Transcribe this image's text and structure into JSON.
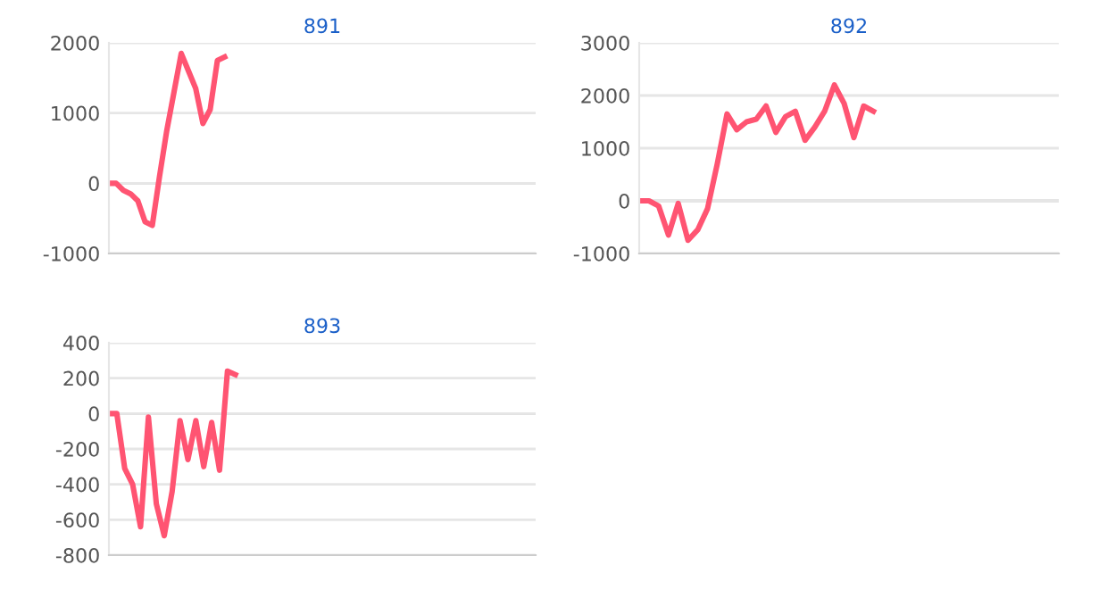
{
  "chart_data": [
    {
      "type": "line",
      "title": "891",
      "categories": [
        null,
        null,
        null,
        null,
        null,
        null,
        null,
        null,
        null,
        null,
        null,
        null,
        null,
        null,
        null,
        null,
        null,
        null,
        null,
        null,
        null,
        null,
        null,
        null,
        null,
        null,
        null,
        null,
        null,
        null,
        null,
        null,
        null,
        null,
        null,
        null,
        null,
        null,
        null,
        null,
        null,
        null,
        null,
        null,
        null,
        null,
        null,
        null,
        null,
        null,
        null,
        null,
        null,
        null,
        null,
        null,
        null,
        null,
        null,
        null
      ],
      "series": [
        {
          "color": "#ff5472",
          "values": [
            0,
            0,
            -100,
            -150,
            -250,
            -550,
            -600,
            100,
            750,
            1300,
            1850,
            1600,
            1350,
            850,
            1050,
            1750,
            1800,
            null,
            null,
            null,
            null,
            null,
            null,
            null,
            null,
            null,
            null,
            null,
            null,
            null,
            null,
            null,
            null,
            null,
            null,
            null,
            null,
            null,
            null,
            null,
            null,
            null,
            null,
            null,
            null,
            null,
            null,
            null,
            null,
            null,
            null,
            null,
            null,
            null,
            null,
            null,
            null,
            null,
            null,
            null
          ]
        }
      ],
      "ylim": [
        -1000,
        2000
      ],
      "yticks": [
        -1000,
        0,
        1000,
        2000
      ],
      "grid": "y",
      "tick_labels": "y"
    },
    {
      "type": "line",
      "title": "892",
      "categories": [
        null,
        null,
        null,
        null,
        null,
        null,
        null,
        null,
        null,
        null,
        null,
        null,
        null,
        null,
        null,
        null,
        null,
        null,
        null,
        null,
        null,
        null,
        null,
        null,
        null,
        null,
        null,
        null,
        null,
        null,
        null,
        null,
        null,
        null,
        null,
        null,
        null,
        null,
        null,
        null,
        null,
        null,
        null,
        null
      ],
      "series": [
        {
          "color": "#ff5472",
          "values": [
            0,
            0,
            -100,
            -650,
            -50,
            -750,
            -550,
            -150,
            700,
            1650,
            1350,
            1500,
            1550,
            1800,
            1300,
            1600,
            1700,
            1150,
            1400,
            1700,
            2200,
            1850,
            1200,
            1800,
            1700,
            null,
            null,
            null,
            null,
            null,
            null,
            null,
            null,
            null,
            null,
            null,
            null,
            null,
            null,
            null,
            null,
            null,
            null,
            null
          ]
        }
      ],
      "ylim": [
        -1000,
        3000
      ],
      "yticks": [
        -1000,
        0,
        1000,
        2000,
        3000
      ],
      "grid": "y",
      "tick_labels": "y"
    },
    {
      "type": "line",
      "title": "893",
      "categories": [
        null,
        null,
        null,
        null,
        null,
        null,
        null,
        null,
        null,
        null,
        null,
        null,
        null,
        null,
        null,
        null,
        null,
        null,
        null,
        null,
        null,
        null,
        null,
        null,
        null,
        null,
        null,
        null,
        null,
        null,
        null,
        null,
        null,
        null,
        null,
        null,
        null,
        null,
        null,
        null,
        null,
        null,
        null,
        null,
        null,
        null,
        null,
        null,
        null,
        null,
        null,
        null,
        null,
        null,
        null
      ],
      "series": [
        {
          "color": "#ff5472",
          "values": [
            0,
            0,
            -310,
            -400,
            -640,
            -20,
            -510,
            -690,
            -440,
            -40,
            -260,
            -40,
            -300,
            -50,
            -320,
            240,
            220,
            null,
            null,
            null,
            null,
            null,
            null,
            null,
            null,
            null,
            null,
            null,
            null,
            null,
            null,
            null,
            null,
            null,
            null,
            null,
            null,
            null,
            null,
            null,
            null,
            null,
            null,
            null,
            null,
            null,
            null,
            null,
            null,
            null,
            null,
            null,
            null,
            null,
            null
          ]
        }
      ],
      "ylim": [
        -800,
        400
      ],
      "yticks": [
        -800,
        -600,
        -400,
        -200,
        0,
        200,
        400
      ],
      "grid": "y",
      "tick_labels": "y"
    }
  ]
}
